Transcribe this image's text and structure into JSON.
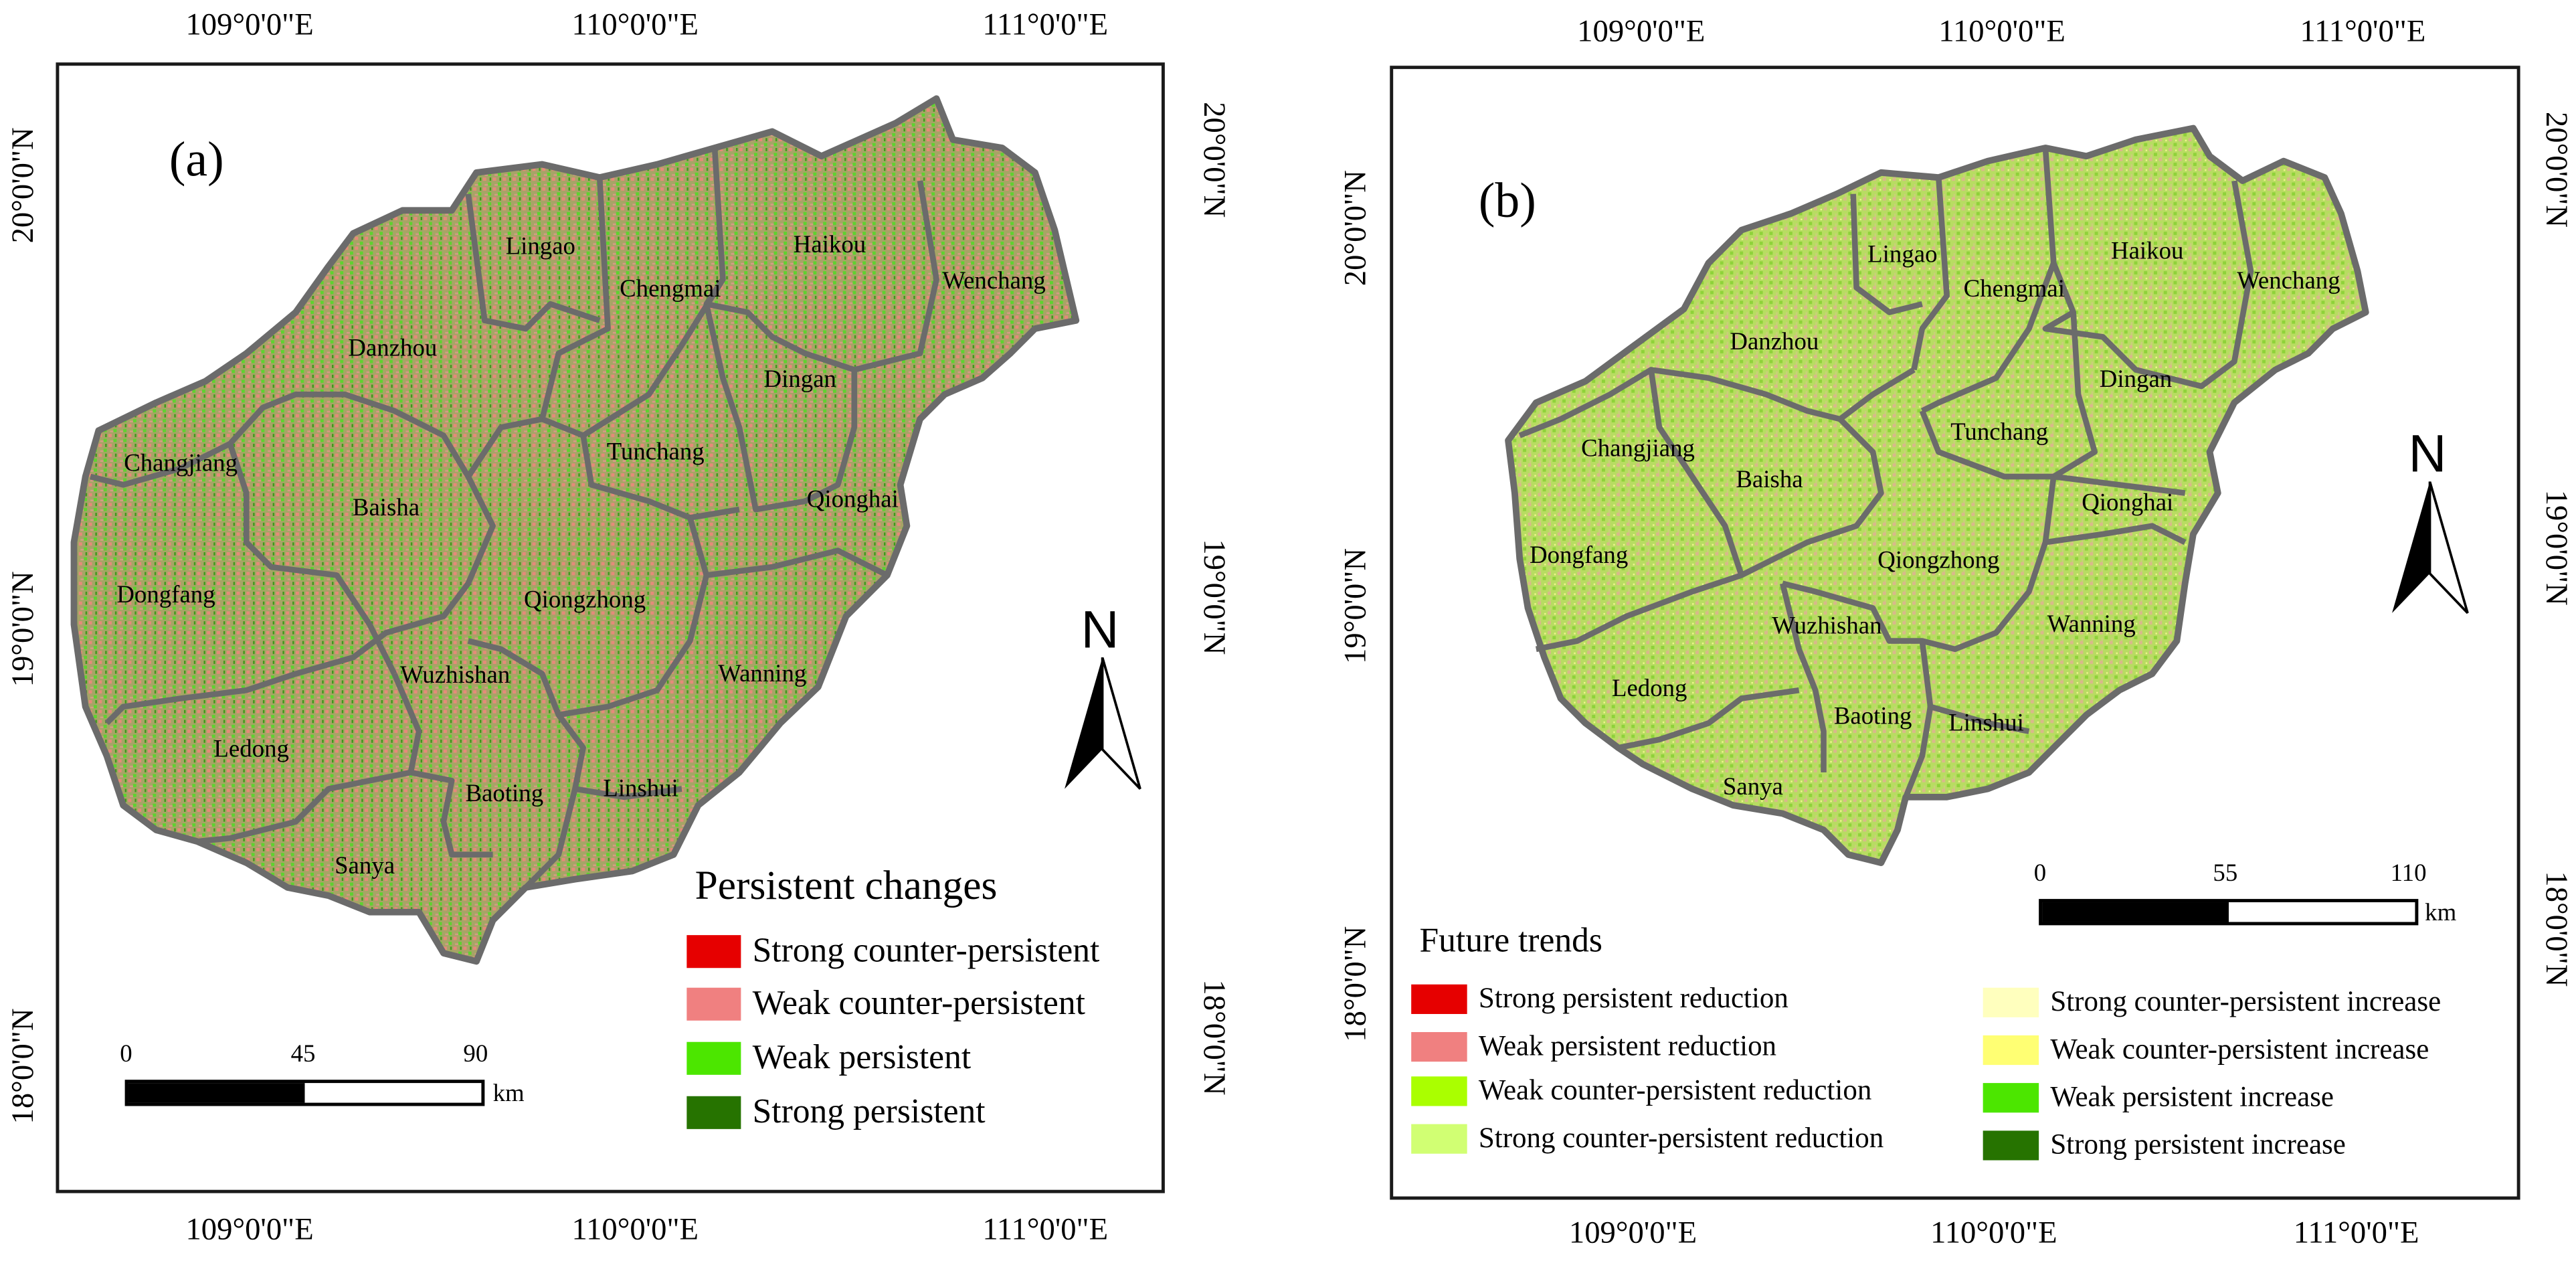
{
  "graticule": {
    "longitudes": [
      "109°0'0\"E",
      "110°0'0\"E",
      "111°0'0\"E"
    ],
    "latitudes": [
      "20°0'0\"N",
      "19°0'0\"N",
      "18°0'0\"N"
    ]
  },
  "panel_a": {
    "letter": "(a)",
    "regions": [
      "Lingao",
      "Chengmai",
      "Haikou",
      "Wenchang",
      "Danzhou",
      "Dingan",
      "Changjiang",
      "Tunchang",
      "Baisha",
      "Qionghai",
      "Dongfang",
      "Qiongzhong",
      "Wuzhishan",
      "Wanning",
      "Ledong",
      "Baoting",
      "Linshui",
      "Sanya"
    ],
    "north": "N",
    "scalebar": {
      "ticks": [
        "0",
        "45",
        "90"
      ],
      "unit": "km"
    },
    "legend": {
      "title": "Persistent changes",
      "items": [
        {
          "label": "Strong counter-persistent",
          "color": "#e60000"
        },
        {
          "label": "Weak counter-persistent",
          "color": "#f08080"
        },
        {
          "label": "Weak persistent",
          "color": "#4ce600"
        },
        {
          "label": "Strong persistent",
          "color": "#267300"
        }
      ]
    }
  },
  "panel_b": {
    "letter": "(b)",
    "regions": [
      "Lingao",
      "Chengmai",
      "Haikou",
      "Wenchang",
      "Danzhou",
      "Dingan",
      "Changjiang",
      "Tunchang",
      "Baisha",
      "Qionghai",
      "Dongfang",
      "Qiongzhong",
      "Wuzhishan",
      "Wanning",
      "Ledong",
      "Baoting",
      "Linshui",
      "Sanya"
    ],
    "north": "N",
    "scalebar": {
      "ticks": [
        "0",
        "55",
        "110"
      ],
      "unit": "km"
    },
    "legend": {
      "title": "Future trends",
      "items": [
        {
          "label": "Strong persistent reduction",
          "color": "#e60000"
        },
        {
          "label": "Weak persistent reduction",
          "color": "#f08080"
        },
        {
          "label": "Weak counter-persistent reduction",
          "color": "#aaff00"
        },
        {
          "label": "Strong counter-persistent reduction",
          "color": "#d1ff73"
        },
        {
          "label": "Strong counter-persistent increase",
          "color": "#ffffbe"
        },
        {
          "label": "Weak counter-persistent increase",
          "color": "#ffff73"
        },
        {
          "label": "Weak persistent increase",
          "color": "#4ce600"
        },
        {
          "label": "Strong persistent increase",
          "color": "#267300"
        }
      ]
    }
  },
  "colors": {
    "map_fill_a": "#a7a466",
    "map_fill_b": "#b8dc62",
    "boundary": "#6b6b6b",
    "frame": "#1a1a1a"
  }
}
